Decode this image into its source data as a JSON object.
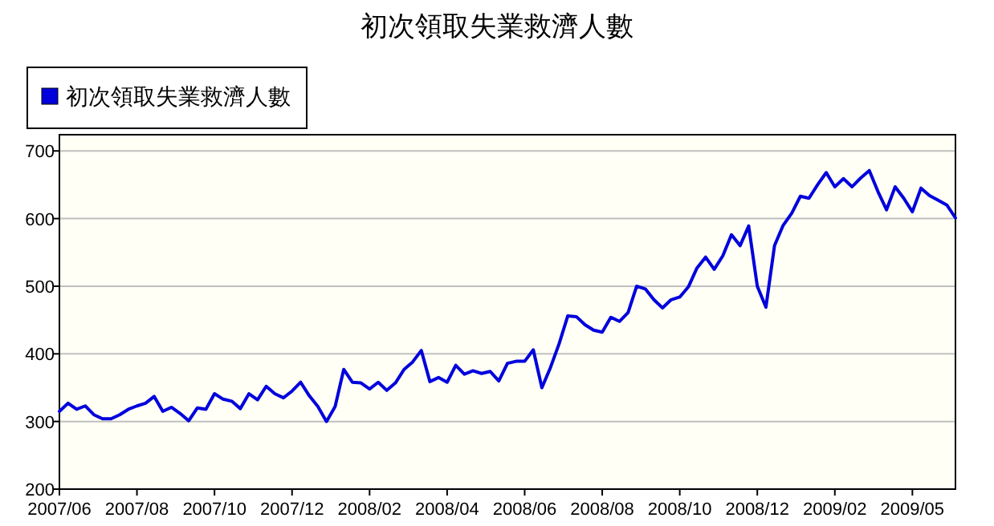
{
  "chart_data": {
    "type": "line",
    "title": "初次領取失業救濟人數",
    "legend": "top left",
    "grid": "y",
    "categories": [
      "2007/06",
      null,
      null,
      null,
      null,
      null,
      null,
      null,
      null,
      "2007/08",
      null,
      null,
      null,
      null,
      null,
      null,
      null,
      null,
      "2007/10",
      null,
      null,
      null,
      null,
      null,
      null,
      null,
      null,
      "2007/12",
      null,
      null,
      null,
      null,
      null,
      null,
      null,
      null,
      "2008/02",
      null,
      null,
      null,
      null,
      null,
      null,
      null,
      null,
      "2008/04",
      null,
      null,
      null,
      null,
      null,
      null,
      null,
      null,
      "2008/06",
      null,
      null,
      null,
      null,
      null,
      null,
      null,
      null,
      "2008/08",
      null,
      null,
      null,
      null,
      null,
      null,
      null,
      null,
      "2008/10",
      null,
      null,
      null,
      null,
      null,
      null,
      null,
      null,
      "2008/12",
      null,
      null,
      null,
      null,
      null,
      null,
      null,
      null,
      "2009/02",
      null,
      null,
      null,
      null,
      null,
      null,
      null,
      null,
      "2009/05",
      null,
      null,
      null,
      null,
      null
    ],
    "series": [
      {
        "name": "初次領取失業救濟人數",
        "color": "#0000dd",
        "values": [
          315,
          327,
          318,
          323,
          310,
          304,
          304,
          310,
          318,
          323,
          327,
          337,
          315,
          321,
          312,
          301,
          320,
          318,
          341,
          333,
          330,
          319,
          341,
          332,
          352,
          341,
          335,
          345,
          358,
          338,
          322,
          300,
          322,
          377,
          358,
          357,
          348,
          358,
          346,
          357,
          377,
          388,
          405,
          359,
          365,
          358,
          383,
          370,
          375,
          371,
          374,
          360,
          386,
          389,
          389,
          406,
          350,
          380,
          415,
          456,
          455,
          443,
          435,
          432,
          454,
          448,
          461,
          500,
          496,
          480,
          468,
          480,
          484,
          499,
          527,
          543,
          525,
          545,
          576,
          560,
          589,
          500,
          469,
          560,
          590,
          608,
          633,
          630,
          650,
          668,
          647,
          659,
          647,
          660,
          671,
          640,
          613,
          647,
          630,
          610,
          645,
          634,
          627,
          620,
          601
        ]
      }
    ],
    "ylim": [
      200,
      724
    ],
    "yticks": [
      200,
      300,
      400,
      500,
      600,
      700
    ]
  }
}
